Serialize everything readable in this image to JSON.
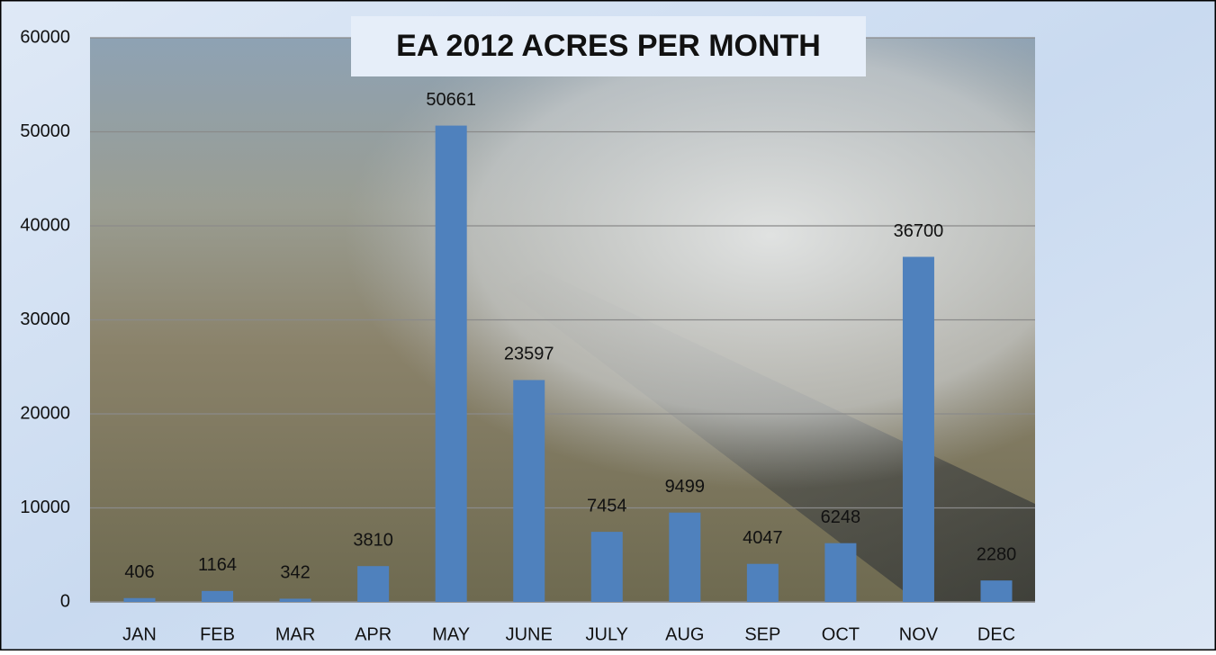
{
  "chart_data": {
    "type": "bar",
    "title": "EA 2012 ACRES PER MONTH",
    "categories": [
      "JAN",
      "FEB",
      "MAR",
      "APR",
      "MAY",
      "JUNE",
      "JULY",
      "AUG",
      "SEP",
      "OCT",
      "NOV",
      "DEC"
    ],
    "values": [
      406,
      1164,
      342,
      3810,
      50661,
      23597,
      7454,
      9499,
      4047,
      6248,
      36700,
      2280
    ],
    "color": "#4f81bd",
    "ylim": [
      0,
      60000
    ],
    "yticks": [
      0,
      10000,
      20000,
      30000,
      40000,
      50000,
      60000
    ],
    "grid": true
  }
}
